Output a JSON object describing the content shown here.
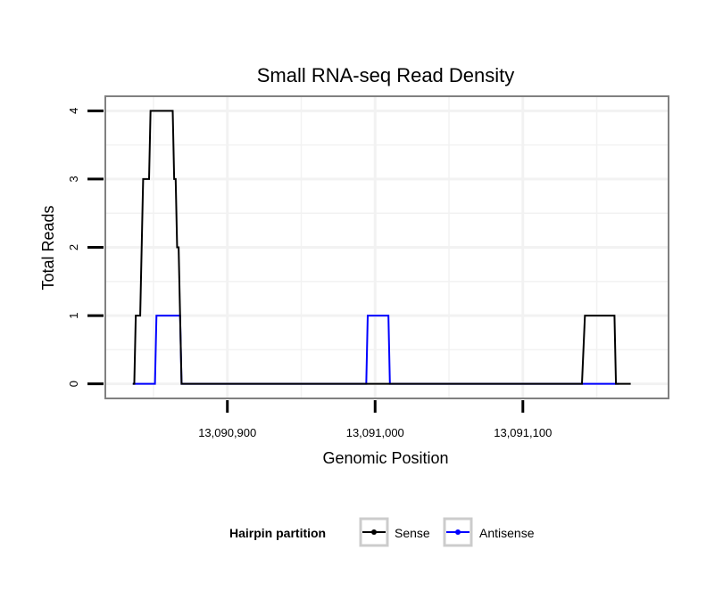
{
  "chart_data": {
    "type": "line",
    "title": "Small RNA-seq Read Density",
    "xlabel": "Genomic Position",
    "ylabel": "Total Reads",
    "xlim": [
      13090818,
      13091198
    ],
    "ylim": [
      -0.2,
      4.2
    ],
    "x_ticks": [
      13090900,
      13091000,
      13091100
    ],
    "x_tick_labels": [
      "13,090,900",
      "13,091,000",
      "13,091,100"
    ],
    "y_ticks": [
      0,
      1,
      2,
      3,
      4
    ],
    "y_tick_labels": [
      "0",
      "1",
      "2",
      "3",
      "4"
    ],
    "grid": true,
    "legend": {
      "title": "Hairpin partition",
      "position": "bottom",
      "entries": [
        "Sense",
        "Antisense"
      ]
    },
    "series": [
      {
        "name": "Sense",
        "color": "#000000",
        "x": [
          13090836,
          13090837,
          13090838,
          13090840,
          13090841,
          13090843,
          13090847,
          13090848,
          13090850,
          13090853,
          13090863,
          13090864,
          13090865,
          13090866,
          13090867,
          13090869,
          13090870,
          13091139,
          13091140,
          13091142,
          13091162,
          13091163,
          13091165,
          13091173
        ],
        "values": [
          0,
          0,
          1,
          1,
          1,
          3,
          3,
          4,
          4,
          4,
          4,
          3,
          3,
          2,
          2,
          0,
          0,
          0,
          0,
          1,
          1,
          0,
          0,
          0
        ]
      },
      {
        "name": "Antisense",
        "color": "#0000ff",
        "x": [
          13090836,
          13090851,
          13090852,
          13090853,
          13090868,
          13090869,
          13090870,
          13090994,
          13090995,
          13090996,
          13091009,
          13091010,
          13091011,
          13091165
        ],
        "values": [
          0,
          0,
          1,
          1,
          1,
          0,
          0,
          0,
          1,
          1,
          1,
          0,
          0,
          0
        ]
      }
    ]
  }
}
